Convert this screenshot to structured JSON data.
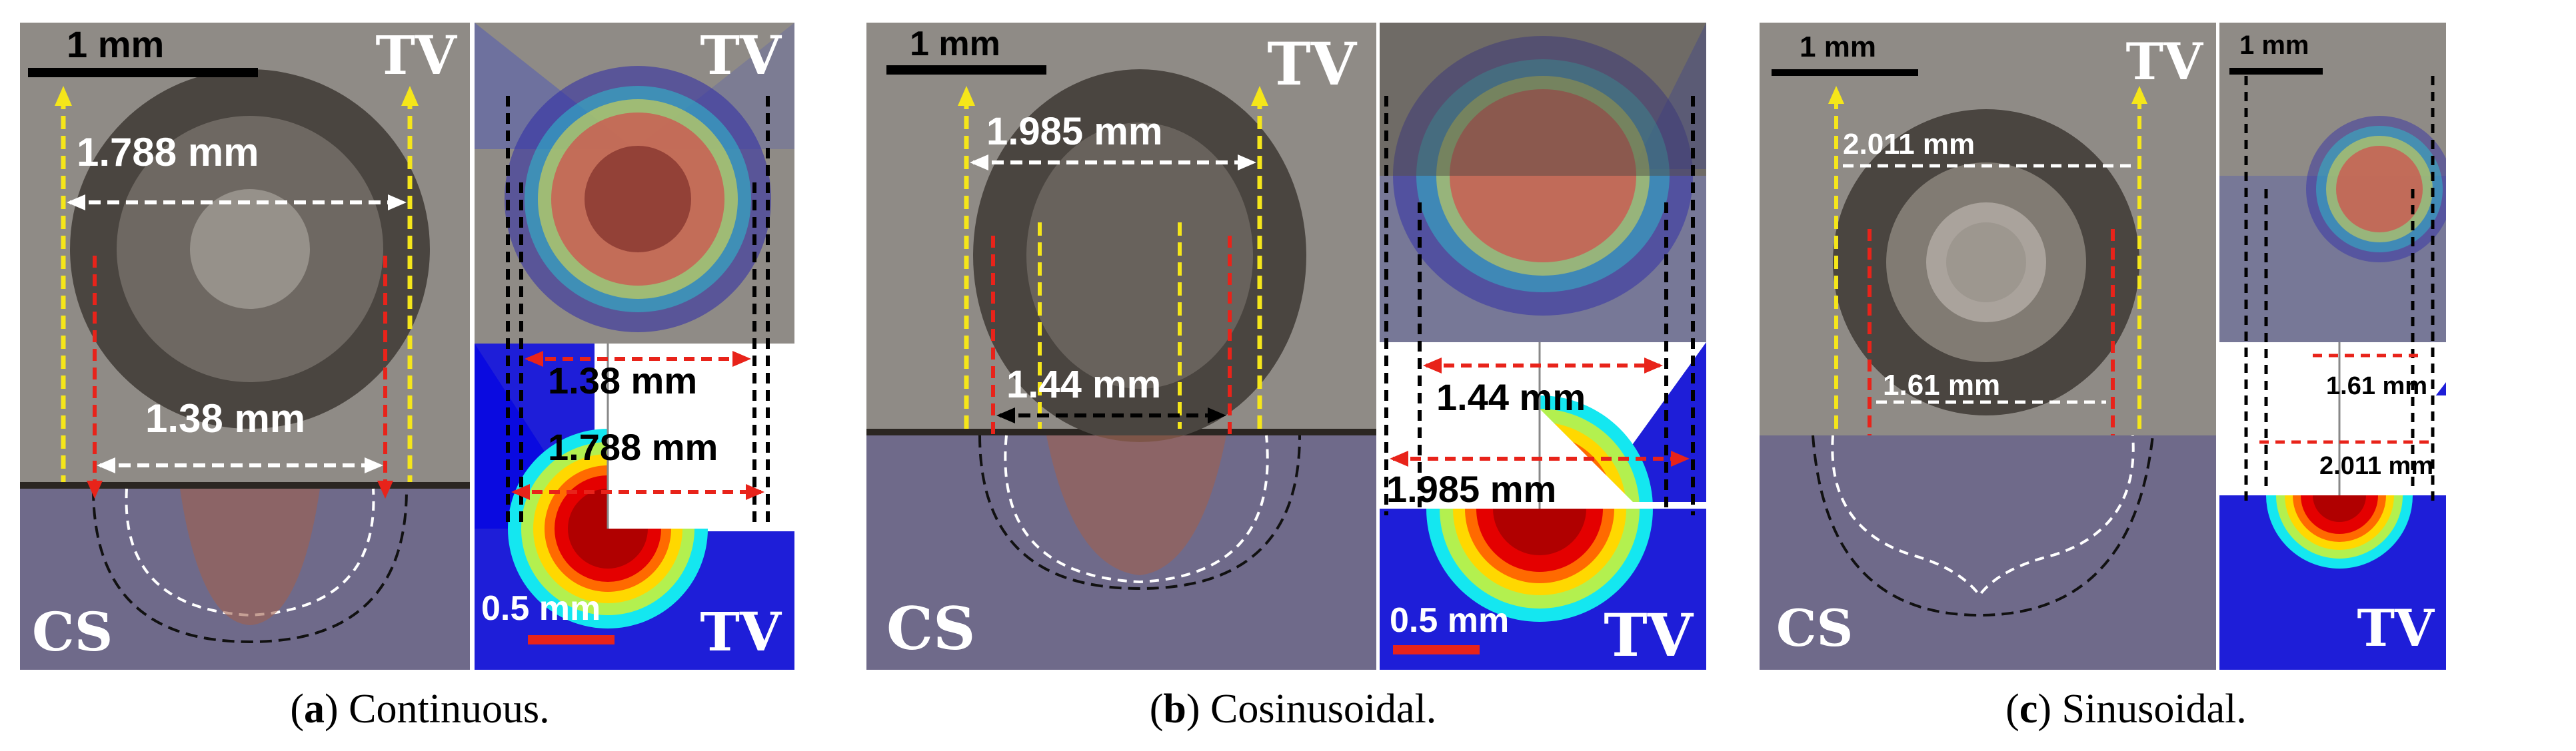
{
  "panels": [
    {
      "letter": "a",
      "caption_text": ") Continuous.",
      "left": {
        "scale_label": "1 mm",
        "top_label": "TV",
        "bottom_label": "CS",
        "outer_width": "1.788 mm",
        "inner_width": "1.38 mm"
      },
      "right": {
        "top_label": "TV",
        "bottom_label": "TV",
        "scale_label": "0.5 mm",
        "inner_width": "1.38 mm",
        "outer_width": "1.788 mm"
      }
    },
    {
      "letter": "b",
      "caption_text": ") Cosinusoidal.",
      "left": {
        "scale_label": "1 mm",
        "top_label": "TV",
        "bottom_label": "CS",
        "outer_width": "1.985 mm",
        "inner_width": "1.44 mm"
      },
      "right": {
        "top_label": "",
        "bottom_label": "TV",
        "scale_label": "0.5 mm",
        "inner_width": "1.44 mm",
        "outer_width": "1.985 mm"
      }
    },
    {
      "letter": "c",
      "caption_text": ") Sinusoidal.",
      "left": {
        "scale_label": "1 mm",
        "top_label": "TV",
        "bottom_label": "CS",
        "outer_width": "2.011 mm",
        "inner_width": "1.61 mm"
      },
      "right": {
        "top_label": "",
        "scale_label": "1 mm",
        "bottom_label": "TV",
        "inner_width": "1.61 mm",
        "outer_width": "2.011 mm"
      }
    }
  ],
  "colors": {
    "outer_arrow": "#f5e61a",
    "inner_arrow": "#e8231a",
    "boundary": "#ffffff",
    "scale_bar": "#000000",
    "scale_bar_sim": "#e8231a"
  }
}
